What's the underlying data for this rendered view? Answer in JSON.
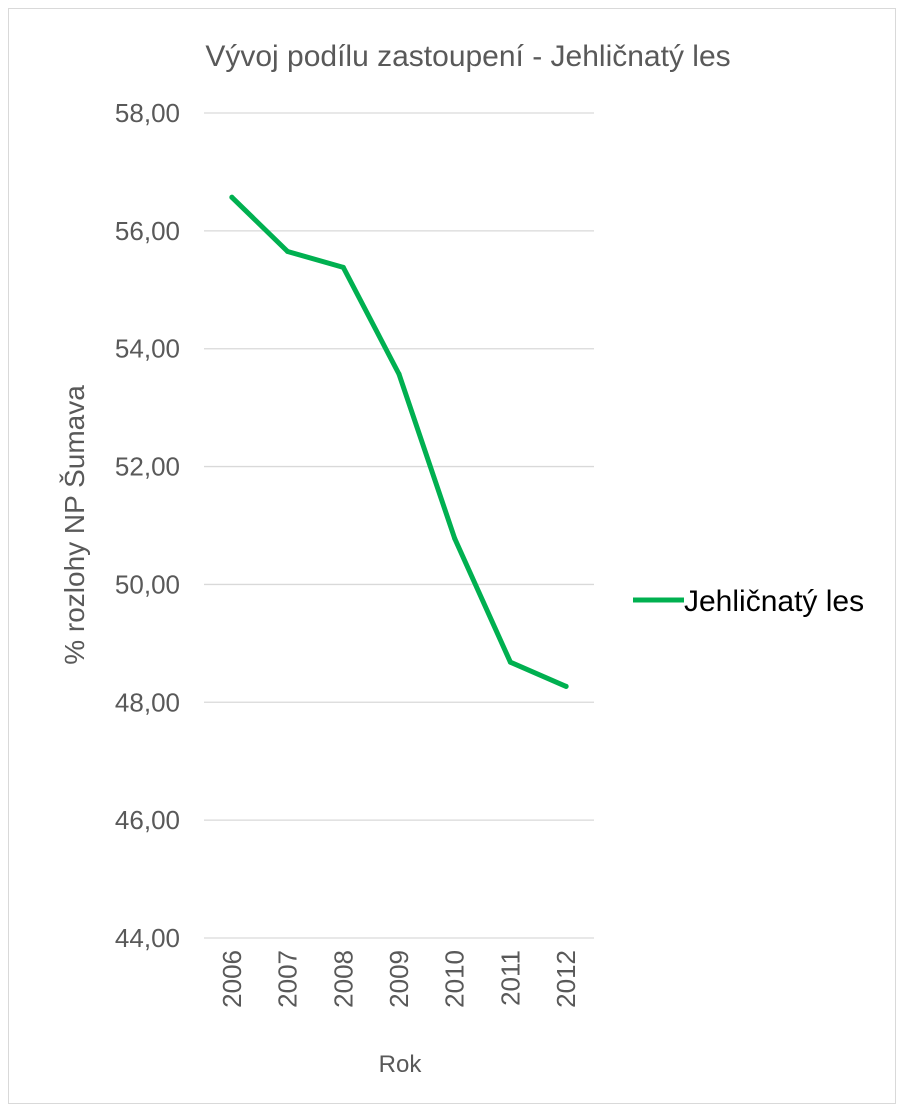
{
  "chart_data": {
    "type": "line",
    "title": "Vývoj podílu zastoupení - Jehličnatý les",
    "xlabel": "Rok",
    "ylabel": "% rozlohy NP Šumava",
    "categories": [
      "2006",
      "2007",
      "2008",
      "2009",
      "2010",
      "2011",
      "2012"
    ],
    "series": [
      {
        "name": "Jehličnatý les",
        "color": "#00b050",
        "values": [
          56.57,
          55.65,
          55.38,
          53.57,
          50.78,
          48.68,
          48.27
        ]
      }
    ],
    "ylim": [
      44,
      58
    ],
    "ytick_values": [
      44,
      46,
      48,
      50,
      52,
      54,
      56,
      58
    ],
    "ytick_labels": [
      "44,00",
      "46,00",
      "48,00",
      "50,00",
      "52,00",
      "54,00",
      "56,00",
      "58,00"
    ],
    "grid": "horizontal",
    "legend": "right"
  }
}
